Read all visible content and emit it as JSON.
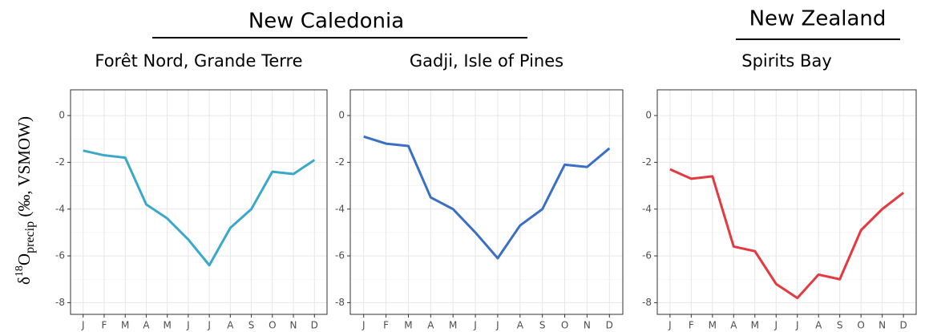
{
  "group_titles": [
    "New Caledonia",
    "New Zealand"
  ],
  "ylabel": {
    "prefix": "δ",
    "sup": "18",
    "main": "O",
    "sub": "precip",
    "suffix": " (‰, VSMOW)"
  },
  "chart_data": [
    {
      "type": "line",
      "title": "Forêt Nord, Grande Terre",
      "categories": [
        "J",
        "F",
        "M",
        "A",
        "M",
        "J",
        "J",
        "A",
        "S",
        "O",
        "N",
        "D"
      ],
      "series": [
        {
          "color": "#3aa9c9",
          "values": [
            -1.5,
            -1.7,
            -1.8,
            -3.8,
            -4.4,
            -5.3,
            -6.4,
            -4.8,
            -4.0,
            -2.4,
            -2.5,
            -1.9
          ]
        }
      ],
      "ylim": [
        -8.5,
        1.1
      ],
      "yticks": [
        0,
        -2,
        -4,
        -6,
        -8
      ],
      "grid": true
    },
    {
      "type": "line",
      "title": "Gadji, Isle of Pines",
      "categories": [
        "J",
        "F",
        "M",
        "A",
        "M",
        "J",
        "J",
        "A",
        "S",
        "O",
        "N",
        "D"
      ],
      "series": [
        {
          "color": "#3a6fc4",
          "values": [
            -0.9,
            -1.2,
            -1.3,
            -3.5,
            -4.0,
            -5.0,
            -6.1,
            -4.7,
            -4.0,
            -2.1,
            -2.2,
            -1.4
          ]
        }
      ],
      "ylim": [
        -8.5,
        1.1
      ],
      "yticks": [
        0,
        -2,
        -4,
        -6,
        -8
      ],
      "grid": true
    },
    {
      "type": "line",
      "title": "Spirits Bay",
      "categories": [
        "J",
        "F",
        "M",
        "A",
        "M",
        "J",
        "J",
        "A",
        "S",
        "O",
        "N",
        "D"
      ],
      "series": [
        {
          "color": "#e3393f",
          "values": [
            -2.3,
            -2.7,
            -2.6,
            -5.6,
            -5.8,
            -7.2,
            -7.8,
            -6.8,
            -7.0,
            -4.9,
            -4.0,
            -3.3
          ]
        }
      ],
      "ylim": [
        -8.5,
        1.1
      ],
      "yticks": [
        0,
        -2,
        -4,
        -6,
        -8
      ],
      "grid": true
    }
  ]
}
